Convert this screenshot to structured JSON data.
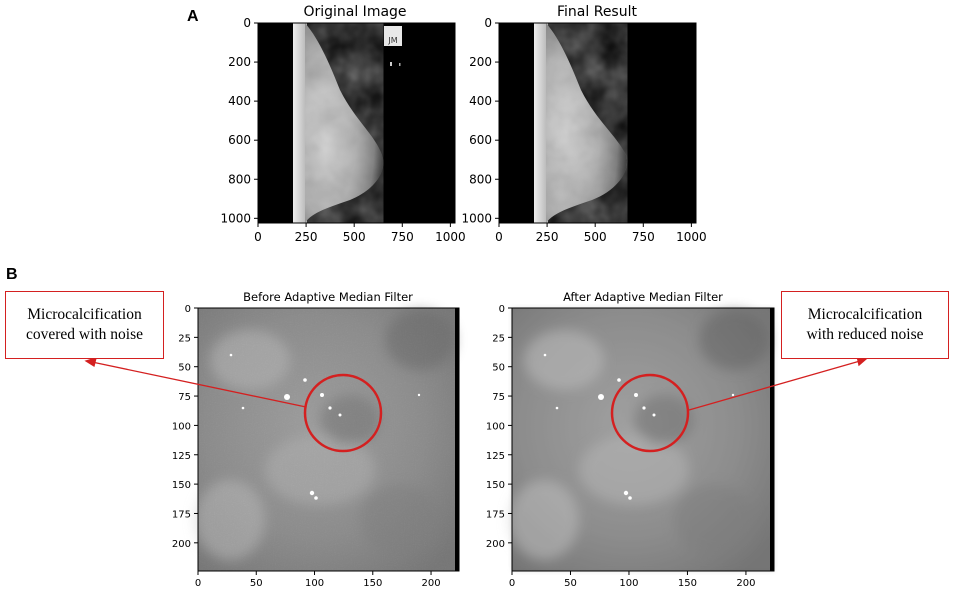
{
  "panels": {
    "A": {
      "letter": "A",
      "left": {
        "title": "Original Image",
        "yticks": [
          "0",
          "200",
          "400",
          "600",
          "800",
          "1000"
        ],
        "xticks": [
          "0",
          "250",
          "500",
          "750",
          "1000"
        ],
        "label_text": [
          "JM"
        ]
      },
      "right": {
        "title": "Final Result",
        "yticks": [
          "0",
          "200",
          "400",
          "600",
          "800",
          "1000"
        ],
        "xticks": [
          "0",
          "250",
          "500",
          "750",
          "1000"
        ]
      }
    },
    "B": {
      "letter": "B",
      "left": {
        "title": "Before Adaptive Median Filter",
        "yticks": [
          "0",
          "25",
          "50",
          "75",
          "100",
          "125",
          "150",
          "175",
          "200"
        ],
        "xticks": [
          "0",
          "50",
          "100",
          "150",
          "200"
        ],
        "callout": [
          "Microcalcification",
          "covered with noise"
        ]
      },
      "right": {
        "title": "After Adaptive Median Filter",
        "yticks": [
          "0",
          "25",
          "50",
          "75",
          "100",
          "125",
          "150",
          "175",
          "200"
        ],
        "xticks": [
          "0",
          "50",
          "100",
          "150",
          "200"
        ],
        "callout": [
          "Microcalcification",
          "with reduced noise"
        ]
      }
    }
  },
  "colors": {
    "annotation": "#d42020",
    "background": "#000000"
  }
}
